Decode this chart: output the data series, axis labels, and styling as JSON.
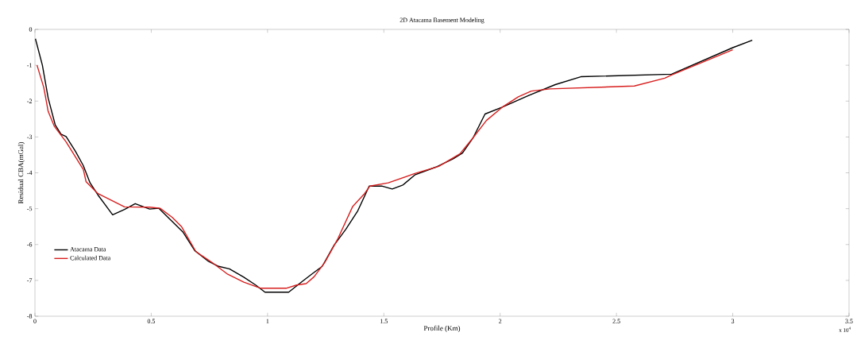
{
  "chart_data": {
    "type": "line",
    "title": "2D Atacama Basement Modeling",
    "xlabel": "Profile (Km)",
    "ylabel": "Residual CBA(mGal)",
    "annotations": [
      "x 10$^{4}$"
    ],
    "xlim": [
      0,
      3.5
    ],
    "xticks": [
      0,
      0.5,
      1,
      1.5,
      2,
      2.5,
      3,
      3.5
    ],
    "ylim": [
      -8,
      0
    ],
    "yticks": [
      -8,
      -7,
      -6,
      -5,
      -4,
      -3,
      -2,
      -1,
      0
    ],
    "legend": "bottom left",
    "marker": "none",
    "line_style": "solid",
    "grid": false,
    "series": [
      {
        "name": "Atacama Data",
        "color": "#000000",
        "x": [
          0.002,
          0.032,
          0.057,
          0.087,
          0.112,
          0.134,
          0.174,
          0.208,
          0.237,
          0.271,
          0.334,
          0.385,
          0.431,
          0.493,
          0.533,
          0.584,
          0.636,
          0.687,
          0.744,
          0.79,
          0.836,
          0.898,
          0.949,
          0.989,
          1.091,
          1.137,
          1.189,
          1.235,
          1.286,
          1.337,
          1.388,
          1.437,
          1.491,
          1.536,
          1.582,
          1.633,
          1.724,
          1.798,
          1.838,
          1.884,
          1.935,
          2.009,
          2.123,
          2.237,
          2.347,
          2.737,
          3.0,
          3.084
        ],
        "values": [
          -0.26,
          -1.0,
          -1.92,
          -2.66,
          -2.92,
          -2.99,
          -3.4,
          -3.8,
          -4.28,
          -4.62,
          -5.17,
          -5.02,
          -4.86,
          -5.01,
          -4.99,
          -5.32,
          -5.65,
          -6.17,
          -6.46,
          -6.61,
          -6.68,
          -6.91,
          -7.13,
          -7.33,
          -7.33,
          -7.09,
          -6.83,
          -6.61,
          -6.02,
          -5.57,
          -5.06,
          -4.37,
          -4.37,
          -4.45,
          -4.34,
          -4.06,
          -3.84,
          -3.61,
          -3.45,
          -3.02,
          -2.36,
          -2.17,
          -1.84,
          -1.54,
          -1.32,
          -1.25,
          -0.51,
          -0.3
        ]
      },
      {
        "name": "Calculated Data",
        "color": "#d81e1e",
        "x": [
          0.009,
          0.038,
          0.057,
          0.083,
          0.134,
          0.208,
          0.22,
          0.271,
          0.305,
          0.385,
          0.493,
          0.538,
          0.59,
          0.63,
          0.692,
          0.761,
          0.829,
          0.898,
          0.971,
          1.08,
          1.125,
          1.166,
          1.2,
          1.246,
          1.303,
          1.366,
          1.417,
          1.44,
          1.519,
          1.633,
          1.736,
          1.827,
          1.884,
          1.941,
          2.009,
          2.078,
          2.134,
          2.214,
          2.577,
          2.708,
          2.737,
          3.0
        ],
        "values": [
          -1.0,
          -1.62,
          -2.29,
          -2.7,
          -3.14,
          -3.91,
          -4.25,
          -4.58,
          -4.69,
          -4.95,
          -4.96,
          -4.99,
          -5.24,
          -5.5,
          -6.2,
          -6.5,
          -6.83,
          -7.05,
          -7.22,
          -7.22,
          -7.13,
          -7.09,
          -6.9,
          -6.5,
          -5.83,
          -4.94,
          -4.58,
          -4.37,
          -4.28,
          -4.02,
          -3.82,
          -3.47,
          -3.02,
          -2.54,
          -2.17,
          -1.88,
          -1.72,
          -1.66,
          -1.58,
          -1.36,
          -1.27,
          -0.57
        ]
      }
    ]
  }
}
